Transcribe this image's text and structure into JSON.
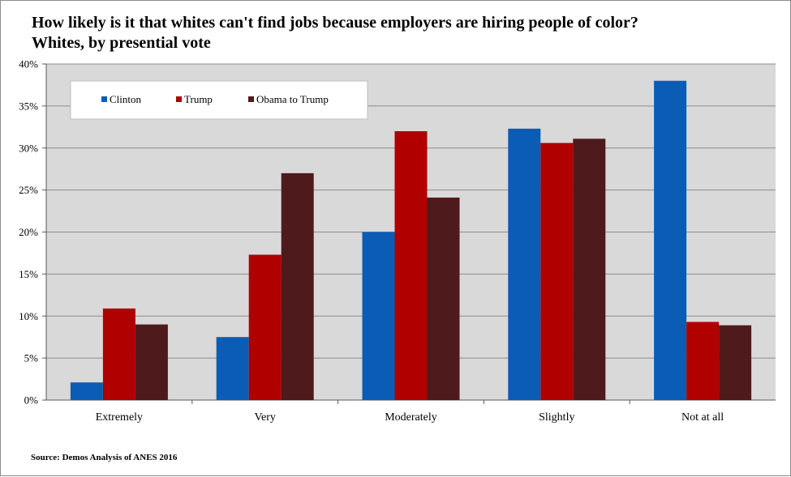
{
  "title_line1": "How likely is it that whites can't find jobs because employers are hiring people of color?",
  "title_line2": "Whites, by presential vote",
  "source": "Source:  Demos Analysis  of ANES 2016",
  "colors": {
    "plot_bg": "#d9d9d9",
    "grid": "#8c8c8c",
    "Clinton": "#0b5cb5",
    "Trump": "#b00000",
    "Obama to Trump": "#4f1a1c"
  },
  "chart_data": {
    "type": "bar",
    "categories": [
      "Extremely",
      "Very",
      "Moderately",
      "Slightly",
      "Not at all"
    ],
    "series": [
      {
        "name": "Clinton",
        "values": [
          2.1,
          7.5,
          20.0,
          32.3,
          38.0
        ]
      },
      {
        "name": "Trump",
        "values": [
          10.9,
          17.3,
          32.0,
          30.6,
          9.3
        ]
      },
      {
        "name": "Obama to Trump",
        "values": [
          9.0,
          27.0,
          24.1,
          31.1,
          8.9
        ]
      }
    ],
    "ylim": [
      0,
      40
    ],
    "yticks": [
      "0%",
      "5%",
      "10%",
      "15%",
      "20%",
      "25%",
      "30%",
      "35%",
      "40%"
    ],
    "legend_position": "top-left",
    "grid": true
  }
}
